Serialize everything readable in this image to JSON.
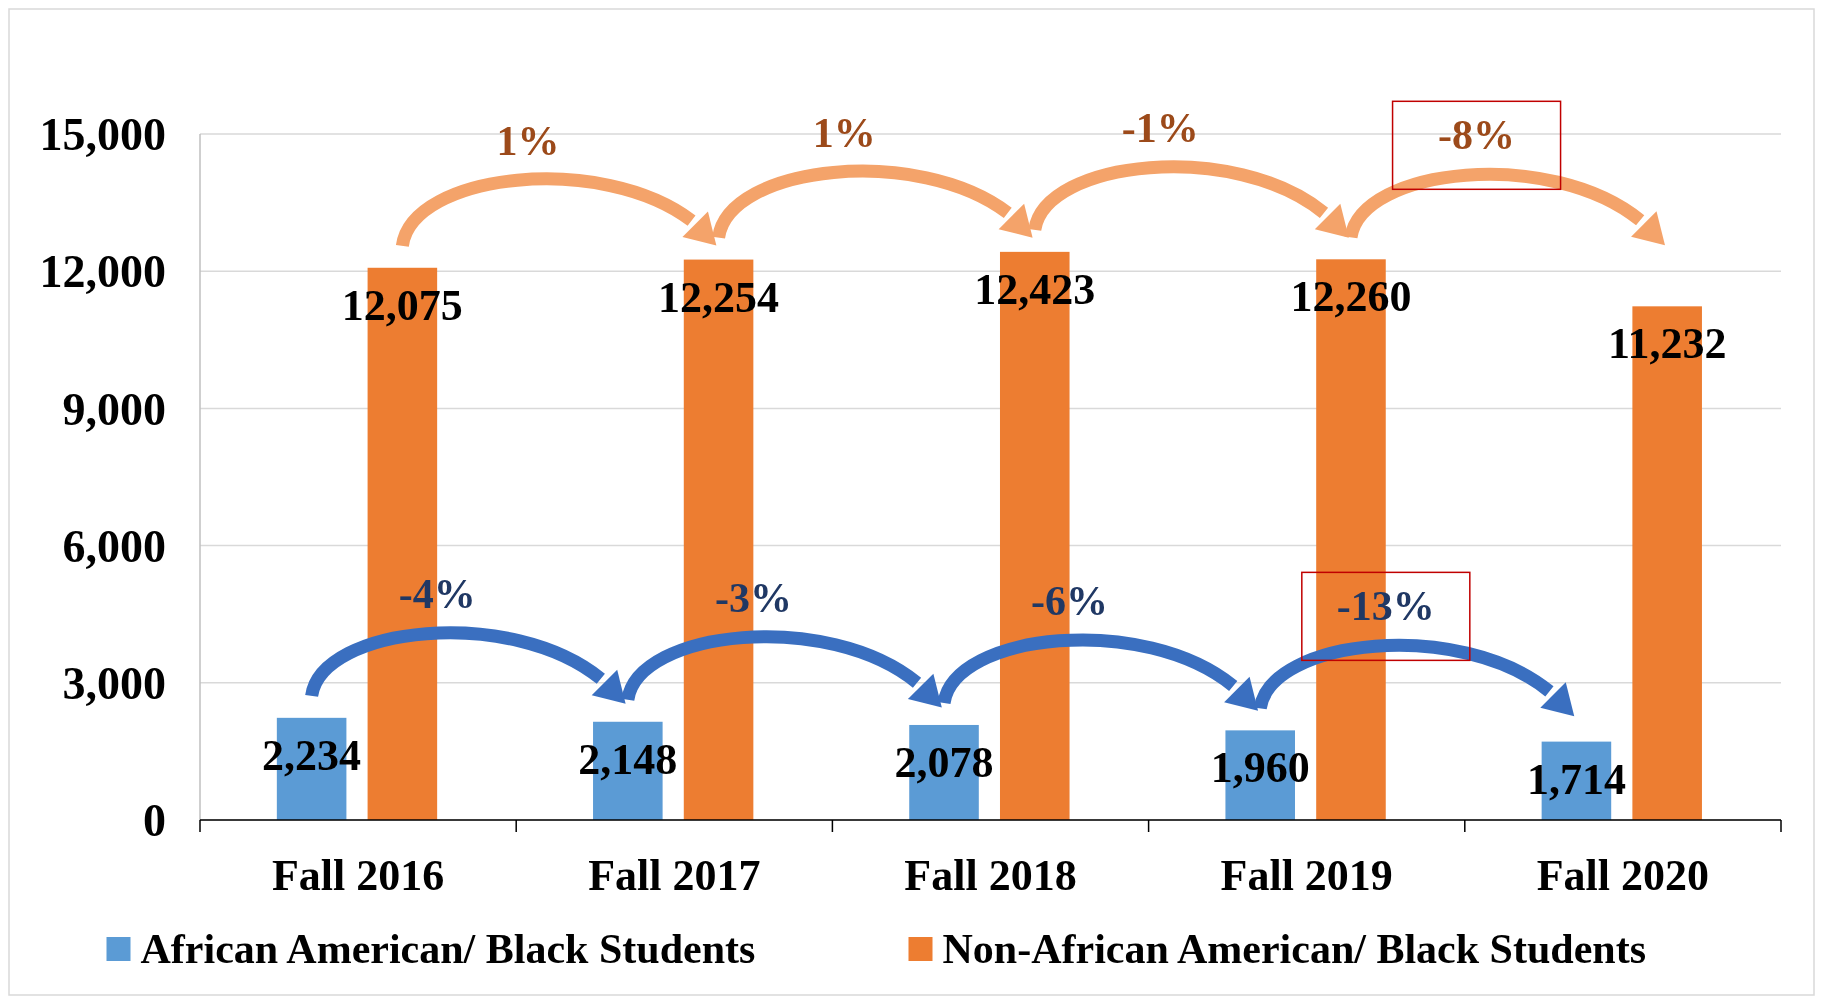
{
  "chart_data": {
    "type": "bar",
    "categories": [
      "Fall 2016",
      "Fall 2017",
      "Fall 2018",
      "Fall 2019",
      "Fall 2020"
    ],
    "series": [
      {
        "name": "African American/ Black Students",
        "color": "#5b9bd5",
        "values": [
          2234,
          2148,
          2078,
          1960,
          1714
        ],
        "value_labels": [
          "2,234",
          "2,148",
          "2,078",
          "1,960",
          "1,714"
        ]
      },
      {
        "name": "Non-African American/ Black Students",
        "color": "#ed7d31",
        "values": [
          12075,
          12254,
          12423,
          12260,
          11232
        ],
        "value_labels": [
          "12,075",
          "12,254",
          "12,423",
          "12,260",
          "11,232"
        ]
      }
    ],
    "ylim": [
      0,
      15000
    ],
    "yticks": [
      {
        "value": 0,
        "label": "0"
      },
      {
        "value": 3000,
        "label": "3,000"
      },
      {
        "value": 6000,
        "label": "6,000"
      },
      {
        "value": 9000,
        "label": "9,000"
      },
      {
        "value": 12000,
        "label": "12,000"
      },
      {
        "value": 15000,
        "label": "15,000"
      }
    ],
    "grid": "y",
    "legend": "bottom",
    "annotations": [
      "1%",
      "1%",
      "-1%",
      "-8%",
      "-4%",
      "-3%",
      "-6%",
      "-13%"
    ]
  }
}
